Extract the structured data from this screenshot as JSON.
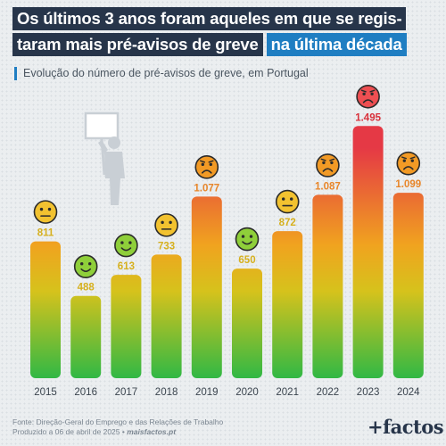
{
  "title": {
    "line1": "Os últimos 3 anos foram aqueles em que se regis-",
    "line2": "taram mais pré-avisos de greve",
    "highlight": "na última década"
  },
  "subtitle": "Evolução do número de pré-avisos de greve, em Portugal",
  "source": {
    "line1": "Fonte: Direção-Geral do Emprego e das Relações de Trabalho",
    "line2_prefix": "Produzido a 06 de abril de 2025 •",
    "line2_brand": "maisfactos.pt"
  },
  "logo": "+factos",
  "chart_data": {
    "type": "bar",
    "categories": [
      "2015",
      "2016",
      "2017",
      "2018",
      "2019",
      "2020",
      "2021",
      "2022",
      "2023",
      "2024"
    ],
    "values": [
      811,
      488,
      613,
      733,
      1077,
      650,
      872,
      1087,
      1495,
      1099
    ],
    "labels": [
      "811",
      "488",
      "613",
      "733",
      "1.077",
      "650",
      "872",
      "1.087",
      "1.495",
      "1.099"
    ],
    "moods": [
      "neutral",
      "happy",
      "happy",
      "neutral",
      "sad",
      "happy",
      "neutral",
      "sad",
      "very-sad",
      "sad"
    ],
    "ylim": [
      0,
      1600
    ],
    "colors": {
      "high": "#e53945",
      "mid": "#f0a31f",
      "low": "#2fb845"
    }
  }
}
